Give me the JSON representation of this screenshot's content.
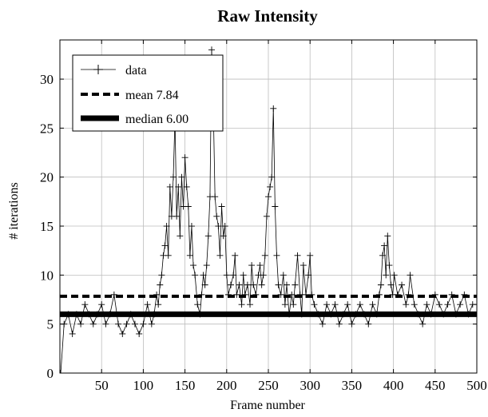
{
  "chart_data": {
    "type": "line",
    "title": "Raw Intensity",
    "xlabel": "Frame number",
    "ylabel": "# iterations",
    "xlim": [
      0,
      500
    ],
    "ylim": [
      0,
      34
    ],
    "xticks": [
      50,
      100,
      150,
      200,
      250,
      300,
      350,
      400,
      450,
      500
    ],
    "yticks": [
      0,
      5,
      10,
      15,
      20,
      25,
      30
    ],
    "grid": true,
    "legend_position": "top-left",
    "series": [
      {
        "name": "data",
        "style": "thin line with plus markers",
        "color": "#000000",
        "x": [
          1,
          5,
          10,
          15,
          20,
          25,
          30,
          35,
          40,
          45,
          50,
          55,
          60,
          65,
          70,
          75,
          80,
          85,
          90,
          95,
          100,
          105,
          110,
          113,
          116,
          118,
          120,
          122,
          124,
          126,
          128,
          130,
          132,
          134,
          136,
          138,
          140,
          142,
          144,
          146,
          148,
          150,
          152,
          154,
          156,
          158,
          160,
          162,
          165,
          168,
          170,
          172,
          174,
          176,
          178,
          180,
          182,
          184,
          186,
          188,
          190,
          192,
          194,
          196,
          198,
          200,
          202,
          205,
          208,
          210,
          212,
          215,
          218,
          220,
          222,
          225,
          228,
          230,
          232,
          235,
          238,
          240,
          242,
          244,
          246,
          248,
          250,
          252,
          254,
          256,
          258,
          260,
          262,
          265,
          268,
          270,
          272,
          275,
          278,
          280,
          282,
          285,
          288,
          290,
          292,
          295,
          298,
          300,
          302,
          305,
          310,
          315,
          320,
          325,
          330,
          335,
          340,
          345,
          350,
          355,
          360,
          365,
          370,
          375,
          380,
          383,
          385,
          387,
          389,
          391,
          393,
          395,
          397,
          399,
          401,
          405,
          410,
          415,
          418,
          420,
          425,
          430,
          435,
          440,
          445,
          450,
          455,
          460,
          465,
          470,
          475,
          480,
          485,
          490,
          495,
          500
        ],
        "y": [
          0,
          5,
          6,
          4,
          6,
          5,
          7,
          6,
          5,
          6,
          7,
          5,
          6,
          8,
          5,
          4,
          5,
          6,
          5,
          4,
          5,
          7,
          5,
          6,
          8,
          7,
          9,
          10,
          12,
          13,
          15,
          12,
          19,
          16,
          20,
          26,
          16,
          19,
          14,
          20,
          17,
          22,
          19,
          17,
          12,
          15,
          11,
          10,
          7,
          6,
          8,
          10,
          9,
          11,
          14,
          18,
          33,
          27,
          18,
          16,
          15,
          12,
          17,
          14,
          15,
          10,
          8,
          9,
          10,
          12,
          8,
          9,
          7,
          10,
          8,
          9,
          7,
          11,
          9,
          8,
          10,
          11,
          9,
          10,
          12,
          16,
          18,
          19,
          20,
          27,
          17,
          12,
          9,
          8,
          10,
          7,
          9,
          6,
          8,
          7,
          9,
          12,
          8,
          6,
          11,
          8,
          10,
          12,
          8,
          7,
          6,
          5,
          7,
          6,
          7,
          5,
          6,
          7,
          5,
          6,
          7,
          6,
          5,
          7,
          6,
          8,
          9,
          12,
          13,
          10,
          14,
          11,
          9,
          8,
          10,
          8,
          9,
          7,
          8,
          10,
          7,
          6,
          5,
          7,
          6,
          8,
          7,
          6,
          7,
          8,
          6,
          7,
          8,
          6,
          7,
          7
        ]
      },
      {
        "name": "mean 7.84",
        "style": "thick dashed",
        "color": "#000000",
        "value": 7.84
      },
      {
        "name": "median 6.00",
        "style": "very thick solid",
        "color": "#000000",
        "value": 6.0
      }
    ]
  }
}
